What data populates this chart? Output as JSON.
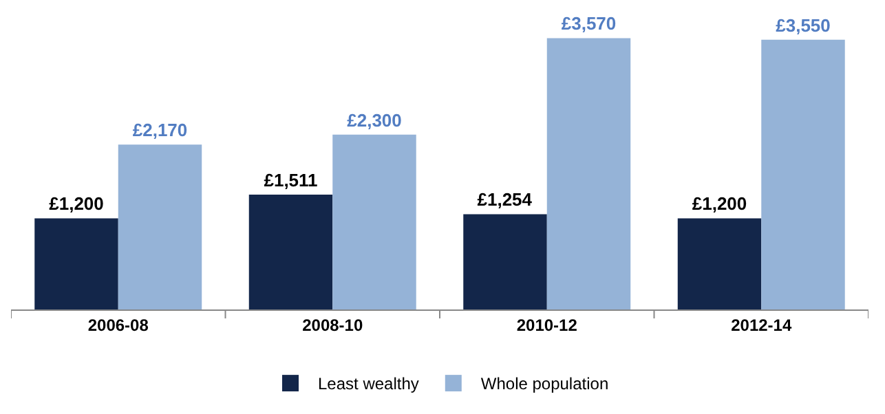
{
  "chart_data": {
    "type": "bar",
    "categories": [
      "2006-08",
      "2008-10",
      "2010-12",
      "2012-14"
    ],
    "series": [
      {
        "name": "Least wealthy",
        "color": "#13264a",
        "values": [
          1200,
          1511,
          1254,
          1200
        ],
        "value_labels": [
          "£1,200",
          "£1,511",
          "£1,254",
          "£1,200"
        ]
      },
      {
        "name": "Whole population",
        "color": "#95b3d7",
        "values": [
          2170,
          2300,
          3570,
          3550
        ],
        "value_labels": [
          "£2,170",
          "£2,300",
          "£3,570",
          "£3,550"
        ]
      }
    ],
    "legend": "bottom"
  }
}
